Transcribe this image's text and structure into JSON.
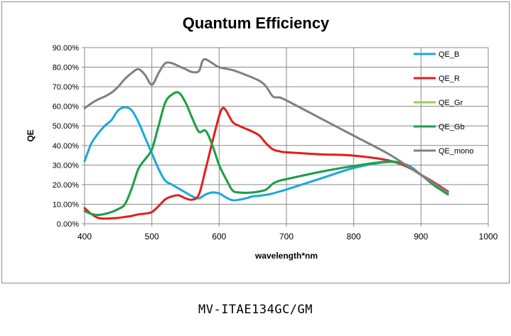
{
  "caption": "MV-ITAE134GC/GM",
  "chart_data": {
    "type": "line",
    "title": "Quantum Efficiency",
    "xlabel": "wavelength*nm",
    "ylabel": "QE",
    "xlim": [
      400,
      1000
    ],
    "ylim": [
      0,
      90
    ],
    "x_ticks": [
      "400",
      "500",
      "600",
      "700",
      "800",
      "900",
      "1000"
    ],
    "y_ticks": [
      "0.00%",
      "10.00%",
      "20.00%",
      "30.00%",
      "40.00%",
      "50.00%",
      "60.00%",
      "70.00%",
      "80.00%",
      "90.00%"
    ],
    "grid": true,
    "legend_position": "right",
    "series": [
      {
        "name": "QE_B",
        "color": "#1aa7e0",
        "points": [
          [
            400,
            32
          ],
          [
            410,
            41
          ],
          [
            420,
            46
          ],
          [
            430,
            50
          ],
          [
            440,
            53
          ],
          [
            450,
            58
          ],
          [
            460,
            59.5
          ],
          [
            470,
            58
          ],
          [
            480,
            52
          ],
          [
            490,
            44
          ],
          [
            500,
            36
          ],
          [
            510,
            28
          ],
          [
            520,
            22
          ],
          [
            530,
            20
          ],
          [
            540,
            18
          ],
          [
            550,
            16
          ],
          [
            560,
            14
          ],
          [
            570,
            13
          ],
          [
            580,
            15
          ],
          [
            590,
            16
          ],
          [
            600,
            15.5
          ],
          [
            610,
            13.5
          ],
          [
            620,
            12
          ],
          [
            630,
            12.3
          ],
          [
            640,
            13
          ],
          [
            650,
            14
          ],
          [
            660,
            14.3
          ],
          [
            670,
            14.8
          ],
          [
            680,
            15.5
          ],
          [
            690,
            16.5
          ],
          [
            700,
            17.5
          ],
          [
            750,
            23
          ],
          [
            800,
            28.5
          ],
          [
            850,
            31.5
          ],
          [
            880,
            30
          ],
          [
            900,
            25
          ],
          [
            920,
            20
          ],
          [
            940,
            16
          ]
        ]
      },
      {
        "name": "QE_R",
        "color": "#e21d1d",
        "points": [
          [
            400,
            8
          ],
          [
            410,
            5
          ],
          [
            420,
            3
          ],
          [
            430,
            2.6
          ],
          [
            440,
            2.8
          ],
          [
            450,
            3
          ],
          [
            460,
            3.5
          ],
          [
            470,
            4
          ],
          [
            480,
            4.8
          ],
          [
            490,
            5.2
          ],
          [
            500,
            6
          ],
          [
            510,
            9
          ],
          [
            520,
            12.5
          ],
          [
            530,
            14
          ],
          [
            540,
            14.5
          ],
          [
            550,
            13
          ],
          [
            560,
            12.3
          ],
          [
            570,
            15
          ],
          [
            580,
            28
          ],
          [
            590,
            42
          ],
          [
            600,
            55
          ],
          [
            605,
            59
          ],
          [
            610,
            58
          ],
          [
            620,
            52
          ],
          [
            630,
            50
          ],
          [
            640,
            48.5
          ],
          [
            650,
            47
          ],
          [
            660,
            45
          ],
          [
            670,
            41
          ],
          [
            680,
            38
          ],
          [
            690,
            37
          ],
          [
            700,
            36.5
          ],
          [
            750,
            35.5
          ],
          [
            800,
            34.8
          ],
          [
            850,
            32.5
          ],
          [
            880,
            29
          ],
          [
            900,
            25
          ],
          [
            920,
            21
          ],
          [
            940,
            16.5
          ]
        ]
      },
      {
        "name": "QE_Gr",
        "color": "#92d050",
        "points": [
          [
            400,
            6.5
          ],
          [
            410,
            5
          ],
          [
            420,
            4.5
          ],
          [
            430,
            5
          ],
          [
            440,
            6
          ],
          [
            450,
            7.5
          ],
          [
            460,
            10
          ],
          [
            470,
            18
          ],
          [
            480,
            28
          ],
          [
            490,
            33
          ],
          [
            500,
            38
          ],
          [
            510,
            50
          ],
          [
            520,
            62
          ],
          [
            530,
            66
          ],
          [
            540,
            67
          ],
          [
            550,
            62
          ],
          [
            560,
            54
          ],
          [
            570,
            47
          ],
          [
            580,
            47.5
          ],
          [
            590,
            40
          ],
          [
            600,
            30
          ],
          [
            610,
            23
          ],
          [
            620,
            17
          ],
          [
            630,
            16
          ],
          [
            640,
            15.8
          ],
          [
            650,
            16
          ],
          [
            660,
            16.5
          ],
          [
            670,
            17.5
          ],
          [
            680,
            20.5
          ],
          [
            690,
            22
          ],
          [
            700,
            22.8
          ],
          [
            750,
            26.5
          ],
          [
            800,
            29.5
          ],
          [
            850,
            31.8
          ],
          [
            870,
            31
          ],
          [
            880,
            29.5
          ],
          [
            900,
            25
          ],
          [
            920,
            19.5
          ],
          [
            940,
            15
          ]
        ]
      },
      {
        "name": "QE_Gb",
        "color": "#1e9e4a",
        "points": [
          [
            400,
            6.5
          ],
          [
            410,
            5
          ],
          [
            420,
            4.5
          ],
          [
            430,
            5
          ],
          [
            440,
            6
          ],
          [
            450,
            7.5
          ],
          [
            460,
            10
          ],
          [
            470,
            18
          ],
          [
            480,
            28
          ],
          [
            490,
            33
          ],
          [
            500,
            38
          ],
          [
            510,
            50
          ],
          [
            520,
            62
          ],
          [
            530,
            66
          ],
          [
            540,
            67
          ],
          [
            550,
            62
          ],
          [
            560,
            54
          ],
          [
            570,
            47
          ],
          [
            580,
            47.5
          ],
          [
            590,
            40
          ],
          [
            600,
            30
          ],
          [
            610,
            23
          ],
          [
            620,
            17
          ],
          [
            630,
            16
          ],
          [
            640,
            15.8
          ],
          [
            650,
            16
          ],
          [
            660,
            16.5
          ],
          [
            670,
            17.5
          ],
          [
            680,
            20.5
          ],
          [
            690,
            22
          ],
          [
            700,
            22.8
          ],
          [
            750,
            26.5
          ],
          [
            800,
            29.5
          ],
          [
            850,
            31.8
          ],
          [
            870,
            31
          ],
          [
            880,
            29.5
          ],
          [
            900,
            25
          ],
          [
            920,
            19.5
          ],
          [
            940,
            15
          ]
        ]
      },
      {
        "name": "QE_mono",
        "color": "#808080",
        "points": [
          [
            400,
            59
          ],
          [
            410,
            61.5
          ],
          [
            420,
            63.5
          ],
          [
            430,
            65
          ],
          [
            440,
            67
          ],
          [
            450,
            70
          ],
          [
            460,
            74
          ],
          [
            470,
            77
          ],
          [
            480,
            79
          ],
          [
            490,
            76
          ],
          [
            500,
            71
          ],
          [
            510,
            77
          ],
          [
            520,
            82
          ],
          [
            530,
            82
          ],
          [
            540,
            80.5
          ],
          [
            550,
            79
          ],
          [
            560,
            77.5
          ],
          [
            570,
            78
          ],
          [
            575,
            83
          ],
          [
            580,
            84
          ],
          [
            590,
            82
          ],
          [
            600,
            80
          ],
          [
            620,
            78.5
          ],
          [
            640,
            76
          ],
          [
            660,
            73
          ],
          [
            670,
            70
          ],
          [
            680,
            65
          ],
          [
            690,
            64.5
          ],
          [
            700,
            63
          ],
          [
            750,
            54
          ],
          [
            800,
            45
          ],
          [
            850,
            36
          ],
          [
            880,
            29.5
          ],
          [
            900,
            25
          ],
          [
            920,
            20.5
          ],
          [
            940,
            16
          ]
        ]
      }
    ]
  }
}
